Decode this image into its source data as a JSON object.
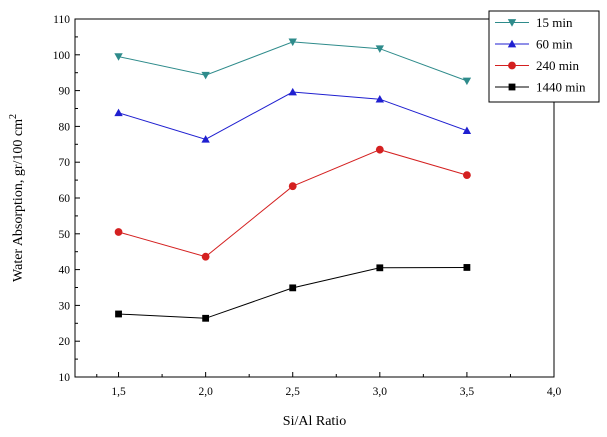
{
  "chart_data": {
    "type": "line",
    "xlabel": "Si/Al Ratio",
    "ylabel_main": "Water Absorption, gr/100 cm",
    "ylabel_sup": "2",
    "xlim": [
      1.25,
      4.0
    ],
    "ylim": [
      10,
      110
    ],
    "x_ticks": [
      1.5,
      2.0,
      2.5,
      3.0,
      3.5,
      4.0
    ],
    "x_tick_labels": [
      "1,5",
      "2,0",
      "2,5",
      "3,0",
      "3,5",
      "4,0"
    ],
    "y_ticks": [
      10,
      20,
      30,
      40,
      50,
      60,
      70,
      80,
      90,
      100,
      110
    ],
    "y_tick_labels": [
      "10",
      "20",
      "30",
      "40",
      "50",
      "60",
      "70",
      "80",
      "90",
      "100",
      "110"
    ],
    "legend_position": "top-right",
    "series": [
      {
        "name": "15 min",
        "color": "#2e8b8b",
        "marker": "triangle-down",
        "x": [
          1.5,
          2.0,
          2.5,
          3.0,
          3.5
        ],
        "y": [
          99.5,
          94.3,
          103.6,
          101.7,
          92.7
        ]
      },
      {
        "name": "60 min",
        "color": "#1f1fd0",
        "marker": "triangle-up",
        "x": [
          1.5,
          2.0,
          2.5,
          3.0,
          3.5
        ],
        "y": [
          83.8,
          76.4,
          89.6,
          87.6,
          78.8
        ]
      },
      {
        "name": "240 min",
        "color": "#d42020",
        "marker": "circle",
        "x": [
          1.5,
          2.0,
          2.5,
          3.0,
          3.5
        ],
        "y": [
          50.5,
          43.6,
          63.3,
          73.5,
          66.4
        ]
      },
      {
        "name": "1440 min",
        "color": "#000000",
        "marker": "square",
        "x": [
          1.5,
          2.0,
          2.5,
          3.0,
          3.5
        ],
        "y": [
          27.6,
          26.4,
          34.9,
          40.5,
          40.6
        ]
      }
    ]
  }
}
